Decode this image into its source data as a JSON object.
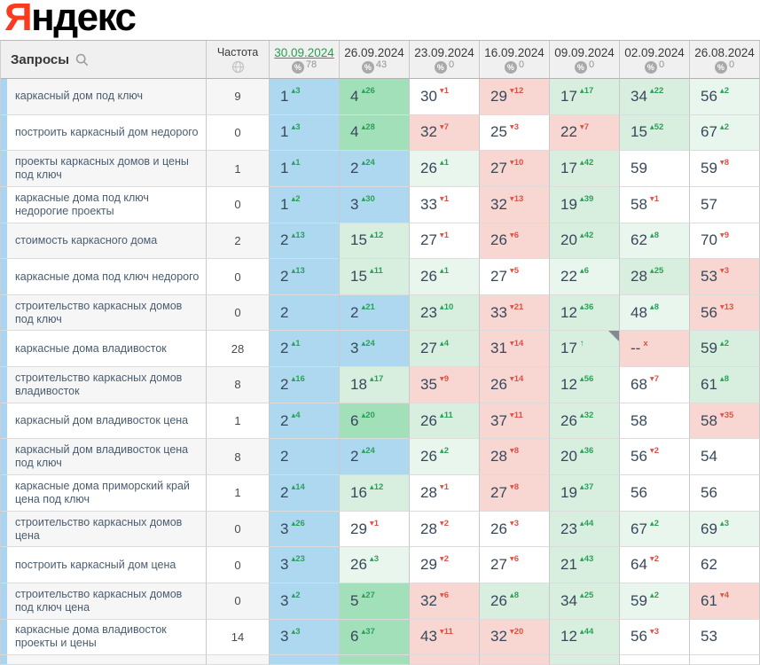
{
  "logo": {
    "ya": "Я",
    "rest": "ндекс"
  },
  "header": {
    "queries_label": "Запросы",
    "frequency_label": "Частота",
    "columns": [
      {
        "date": "30.09.2024",
        "value": "78",
        "selected": true
      },
      {
        "date": "26.09.2024",
        "value": "43",
        "selected": false
      },
      {
        "date": "23.09.2024",
        "value": "0",
        "selected": false
      },
      {
        "date": "16.09.2024",
        "value": "0",
        "selected": false
      },
      {
        "date": "09.09.2024",
        "value": "0",
        "selected": false
      },
      {
        "date": "02.09.2024",
        "value": "0",
        "selected": false
      },
      {
        "date": "26.08.2024",
        "value": "0",
        "selected": false
      }
    ],
    "percent_icon": "%"
  },
  "colors": {
    "top3_bg": "#aed8f0",
    "strong_gain_bg": "#a2e0ba",
    "gain_bg": "#d8efdf",
    "light_gain_bg": "#e9f6ee",
    "loss_bg": "#f8d7d2",
    "delta_up": "#2aa158",
    "delta_down": "#e05045",
    "selected_date": "#23a04f",
    "logo_red": "#fa3b1d"
  },
  "rows": [
    {
      "query": "каркасный дом под ключ",
      "frequency": "9",
      "cells": [
        {
          "v": "1",
          "delta": "3",
          "dir": "up",
          "bg": "blue"
        },
        {
          "v": "4",
          "delta": "26",
          "dir": "up",
          "bg": "g3"
        },
        {
          "v": "30",
          "delta": "1",
          "dir": "down",
          "bg": "white"
        },
        {
          "v": "29",
          "delta": "12",
          "dir": "down",
          "bg": "pink"
        },
        {
          "v": "17",
          "delta": "17",
          "dir": "up",
          "bg": "g2"
        },
        {
          "v": "34",
          "delta": "22",
          "dir": "up",
          "bg": "g2"
        },
        {
          "v": "56",
          "delta": "2",
          "dir": "up",
          "bg": "g1"
        }
      ]
    },
    {
      "query": "построить каркасный дом недорого",
      "frequency": "0",
      "cells": [
        {
          "v": "1",
          "delta": "3",
          "dir": "up",
          "bg": "blue"
        },
        {
          "v": "4",
          "delta": "28",
          "dir": "up",
          "bg": "g3"
        },
        {
          "v": "32",
          "delta": "7",
          "dir": "down",
          "bg": "pink"
        },
        {
          "v": "25",
          "delta": "3",
          "dir": "down",
          "bg": "white"
        },
        {
          "v": "22",
          "delta": "7",
          "dir": "down",
          "bg": "pink"
        },
        {
          "v": "15",
          "delta": "52",
          "dir": "up",
          "bg": "g2"
        },
        {
          "v": "67",
          "delta": "2",
          "dir": "up",
          "bg": "g1"
        }
      ]
    },
    {
      "query": "проекты каркасных домов и цены под ключ",
      "frequency": "1",
      "cells": [
        {
          "v": "1",
          "delta": "1",
          "dir": "up",
          "bg": "blue"
        },
        {
          "v": "2",
          "delta": "24",
          "dir": "up",
          "bg": "blue"
        },
        {
          "v": "26",
          "delta": "1",
          "dir": "up",
          "bg": "g1"
        },
        {
          "v": "27",
          "delta": "10",
          "dir": "down",
          "bg": "pink"
        },
        {
          "v": "17",
          "delta": "42",
          "dir": "up",
          "bg": "g2"
        },
        {
          "v": "59",
          "delta": null,
          "dir": null,
          "bg": "white"
        },
        {
          "v": "59",
          "delta": "8",
          "dir": "down",
          "bg": "white"
        }
      ]
    },
    {
      "query": "каркасные дома под ключ недорогие проекты",
      "frequency": "0",
      "cells": [
        {
          "v": "1",
          "delta": "2",
          "dir": "up",
          "bg": "blue"
        },
        {
          "v": "3",
          "delta": "30",
          "dir": "up",
          "bg": "blue"
        },
        {
          "v": "33",
          "delta": "1",
          "dir": "down",
          "bg": "white"
        },
        {
          "v": "32",
          "delta": "13",
          "dir": "down",
          "bg": "pink"
        },
        {
          "v": "19",
          "delta": "39",
          "dir": "up",
          "bg": "g2"
        },
        {
          "v": "58",
          "delta": "1",
          "dir": "down",
          "bg": "white"
        },
        {
          "v": "57",
          "delta": null,
          "dir": null,
          "bg": "white"
        }
      ]
    },
    {
      "query": "стоимость каркасного дома",
      "frequency": "2",
      "cells": [
        {
          "v": "2",
          "delta": "13",
          "dir": "up",
          "bg": "blue"
        },
        {
          "v": "15",
          "delta": "12",
          "dir": "up",
          "bg": "g2"
        },
        {
          "v": "27",
          "delta": "1",
          "dir": "down",
          "bg": "white"
        },
        {
          "v": "26",
          "delta": "6",
          "dir": "down",
          "bg": "pink"
        },
        {
          "v": "20",
          "delta": "42",
          "dir": "up",
          "bg": "g2"
        },
        {
          "v": "62",
          "delta": "8",
          "dir": "up",
          "bg": "g1"
        },
        {
          "v": "70",
          "delta": "9",
          "dir": "down",
          "bg": "white"
        }
      ]
    },
    {
      "query": "каркасные дома под ключ недорого",
      "frequency": "0",
      "cells": [
        {
          "v": "2",
          "delta": "13",
          "dir": "up",
          "bg": "blue"
        },
        {
          "v": "15",
          "delta": "11",
          "dir": "up",
          "bg": "g2"
        },
        {
          "v": "26",
          "delta": "1",
          "dir": "up",
          "bg": "g1"
        },
        {
          "v": "27",
          "delta": "5",
          "dir": "down",
          "bg": "white"
        },
        {
          "v": "22",
          "delta": "6",
          "dir": "up",
          "bg": "g1"
        },
        {
          "v": "28",
          "delta": "25",
          "dir": "up",
          "bg": "g2"
        },
        {
          "v": "53",
          "delta": "3",
          "dir": "down",
          "bg": "pink"
        }
      ]
    },
    {
      "query": "строительство каркасных домов под ключ",
      "frequency": "0",
      "cells": [
        {
          "v": "2",
          "delta": null,
          "dir": null,
          "bg": "blue"
        },
        {
          "v": "2",
          "delta": "21",
          "dir": "up",
          "bg": "blue"
        },
        {
          "v": "23",
          "delta": "10",
          "dir": "up",
          "bg": "g2"
        },
        {
          "v": "33",
          "delta": "21",
          "dir": "down",
          "bg": "pink"
        },
        {
          "v": "12",
          "delta": "36",
          "dir": "up",
          "bg": "g2"
        },
        {
          "v": "48",
          "delta": "8",
          "dir": "up",
          "bg": "g1"
        },
        {
          "v": "56",
          "delta": "13",
          "dir": "down",
          "bg": "pink"
        }
      ]
    },
    {
      "query": "каркасные дома владивосток",
      "frequency": "28",
      "cells": [
        {
          "v": "2",
          "delta": "1",
          "dir": "up",
          "bg": "blue"
        },
        {
          "v": "3",
          "delta": "24",
          "dir": "up",
          "bg": "blue"
        },
        {
          "v": "27",
          "delta": "4",
          "dir": "up",
          "bg": "g2"
        },
        {
          "v": "31",
          "delta": "14",
          "dir": "down",
          "bg": "pink"
        },
        {
          "v": "17",
          "delta": "",
          "dir": "up",
          "bg": "g2",
          "marker": true
        },
        {
          "v": "--",
          "delta": "x",
          "dir": "down",
          "bg": "pink"
        },
        {
          "v": "59",
          "delta": "2",
          "dir": "up",
          "bg": "g2"
        }
      ]
    },
    {
      "query": "строительство каркасных домов владивосток",
      "frequency": "8",
      "cells": [
        {
          "v": "2",
          "delta": "16",
          "dir": "up",
          "bg": "blue"
        },
        {
          "v": "18",
          "delta": "17",
          "dir": "up",
          "bg": "g2"
        },
        {
          "v": "35",
          "delta": "9",
          "dir": "down",
          "bg": "pink"
        },
        {
          "v": "26",
          "delta": "14",
          "dir": "down",
          "bg": "pink"
        },
        {
          "v": "12",
          "delta": "56",
          "dir": "up",
          "bg": "g2"
        },
        {
          "v": "68",
          "delta": "7",
          "dir": "down",
          "bg": "white"
        },
        {
          "v": "61",
          "delta": "8",
          "dir": "up",
          "bg": "g2"
        }
      ]
    },
    {
      "query": "каркасный дом владивосток цена",
      "frequency": "1",
      "cells": [
        {
          "v": "2",
          "delta": "4",
          "dir": "up",
          "bg": "blue"
        },
        {
          "v": "6",
          "delta": "20",
          "dir": "up",
          "bg": "g3"
        },
        {
          "v": "26",
          "delta": "11",
          "dir": "up",
          "bg": "g2"
        },
        {
          "v": "37",
          "delta": "11",
          "dir": "down",
          "bg": "pink"
        },
        {
          "v": "26",
          "delta": "32",
          "dir": "up",
          "bg": "g2"
        },
        {
          "v": "58",
          "delta": null,
          "dir": null,
          "bg": "white"
        },
        {
          "v": "58",
          "delta": "35",
          "dir": "down",
          "bg": "pink"
        }
      ]
    },
    {
      "query": "каркасный дом владивосток цена под ключ",
      "frequency": "8",
      "cells": [
        {
          "v": "2",
          "delta": null,
          "dir": null,
          "bg": "blue"
        },
        {
          "v": "2",
          "delta": "24",
          "dir": "up",
          "bg": "blue"
        },
        {
          "v": "26",
          "delta": "2",
          "dir": "up",
          "bg": "g1"
        },
        {
          "v": "28",
          "delta": "8",
          "dir": "down",
          "bg": "pink"
        },
        {
          "v": "20",
          "delta": "36",
          "dir": "up",
          "bg": "g2"
        },
        {
          "v": "56",
          "delta": "2",
          "dir": "down",
          "bg": "white"
        },
        {
          "v": "54",
          "delta": null,
          "dir": null,
          "bg": "white"
        }
      ]
    },
    {
      "query": "каркасные дома приморский край цена под ключ",
      "frequency": "1",
      "cells": [
        {
          "v": "2",
          "delta": "14",
          "dir": "up",
          "bg": "blue"
        },
        {
          "v": "16",
          "delta": "12",
          "dir": "up",
          "bg": "g2"
        },
        {
          "v": "28",
          "delta": "1",
          "dir": "down",
          "bg": "white"
        },
        {
          "v": "27",
          "delta": "8",
          "dir": "down",
          "bg": "pink"
        },
        {
          "v": "19",
          "delta": "37",
          "dir": "up",
          "bg": "g2"
        },
        {
          "v": "56",
          "delta": null,
          "dir": null,
          "bg": "white"
        },
        {
          "v": "56",
          "delta": null,
          "dir": null,
          "bg": "white"
        }
      ]
    },
    {
      "query": "строительство каркасных домов цена",
      "frequency": "0",
      "cells": [
        {
          "v": "3",
          "delta": "26",
          "dir": "up",
          "bg": "blue"
        },
        {
          "v": "29",
          "delta": "1",
          "dir": "down",
          "bg": "white"
        },
        {
          "v": "28",
          "delta": "2",
          "dir": "down",
          "bg": "white"
        },
        {
          "v": "26",
          "delta": "3",
          "dir": "down",
          "bg": "white"
        },
        {
          "v": "23",
          "delta": "44",
          "dir": "up",
          "bg": "g2"
        },
        {
          "v": "67",
          "delta": "2",
          "dir": "up",
          "bg": "g1"
        },
        {
          "v": "69",
          "delta": "3",
          "dir": "up",
          "bg": "g1"
        }
      ]
    },
    {
      "query": "построить каркасный дом цена",
      "frequency": "0",
      "cells": [
        {
          "v": "3",
          "delta": "23",
          "dir": "up",
          "bg": "blue"
        },
        {
          "v": "26",
          "delta": "3",
          "dir": "up",
          "bg": "g1"
        },
        {
          "v": "29",
          "delta": "2",
          "dir": "down",
          "bg": "white"
        },
        {
          "v": "27",
          "delta": "6",
          "dir": "down",
          "bg": "white"
        },
        {
          "v": "21",
          "delta": "43",
          "dir": "up",
          "bg": "g2"
        },
        {
          "v": "64",
          "delta": "2",
          "dir": "down",
          "bg": "white"
        },
        {
          "v": "62",
          "delta": null,
          "dir": null,
          "bg": "white"
        }
      ]
    },
    {
      "query": "строительство каркасных домов под ключ цена",
      "frequency": "0",
      "cells": [
        {
          "v": "3",
          "delta": "2",
          "dir": "up",
          "bg": "blue"
        },
        {
          "v": "5",
          "delta": "27",
          "dir": "up",
          "bg": "g3"
        },
        {
          "v": "32",
          "delta": "6",
          "dir": "down",
          "bg": "pink"
        },
        {
          "v": "26",
          "delta": "8",
          "dir": "up",
          "bg": "g2"
        },
        {
          "v": "34",
          "delta": "25",
          "dir": "up",
          "bg": "g2"
        },
        {
          "v": "59",
          "delta": "2",
          "dir": "up",
          "bg": "g1"
        },
        {
          "v": "61",
          "delta": "4",
          "dir": "down",
          "bg": "pink"
        }
      ]
    },
    {
      "query": "каркасные дома владивосток проекты и цены",
      "frequency": "14",
      "cells": [
        {
          "v": "3",
          "delta": "3",
          "dir": "up",
          "bg": "blue"
        },
        {
          "v": "6",
          "delta": "37",
          "dir": "up",
          "bg": "g3"
        },
        {
          "v": "43",
          "delta": "11",
          "dir": "down",
          "bg": "pink"
        },
        {
          "v": "32",
          "delta": "20",
          "dir": "down",
          "bg": "pink"
        },
        {
          "v": "12",
          "delta": "44",
          "dir": "up",
          "bg": "g2"
        },
        {
          "v": "56",
          "delta": "3",
          "dir": "down",
          "bg": "white"
        },
        {
          "v": "53",
          "delta": null,
          "dir": null,
          "bg": "white"
        }
      ]
    }
  ],
  "partial_row": {
    "bgs": [
      "blue",
      "g3",
      "pink",
      "pink",
      "g2",
      "white",
      "white"
    ]
  }
}
